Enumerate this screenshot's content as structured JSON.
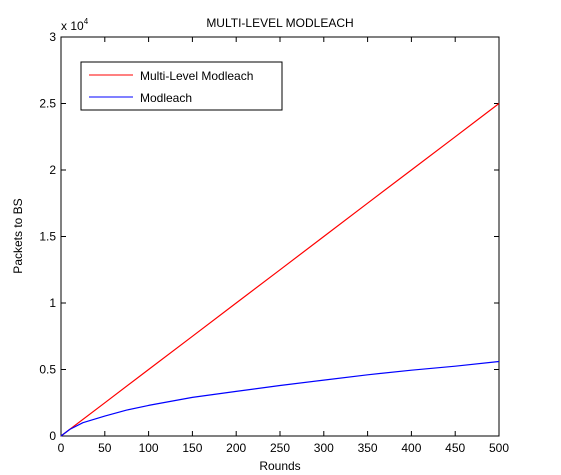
{
  "chart_data": {
    "type": "line",
    "title": "MULTI-LEVEL MODLEACH",
    "xlabel": "Rounds",
    "ylabel": "Packets to BS",
    "exponent_label": {
      "base": "x 10",
      "power": "4"
    },
    "xlim": [
      0,
      500
    ],
    "ylim": [
      0,
      30000
    ],
    "xticks": [
      0,
      50,
      100,
      150,
      200,
      250,
      300,
      350,
      400,
      450,
      500
    ],
    "yticks": [
      0,
      5000,
      10000,
      15000,
      20000,
      25000,
      30000
    ],
    "ytick_labels": [
      "0",
      "0.5",
      "1",
      "1.5",
      "2",
      "2.5",
      "3"
    ],
    "grid": false,
    "legend_position": "top-left",
    "series": [
      {
        "name": "Multi-Level Modleach",
        "color": "#ff0000",
        "x": [
          0,
          50,
          100,
          150,
          200,
          250,
          300,
          350,
          400,
          450,
          500
        ],
        "y": [
          0,
          2500,
          5000,
          7500,
          10000,
          12500,
          15000,
          17500,
          20000,
          22500,
          25000
        ]
      },
      {
        "name": "Modleach",
        "color": "#0000ff",
        "x": [
          0,
          10,
          25,
          50,
          75,
          100,
          150,
          200,
          250,
          300,
          350,
          400,
          450,
          500
        ],
        "y": [
          0,
          500,
          1000,
          1500,
          1950,
          2300,
          2900,
          3350,
          3800,
          4200,
          4600,
          4950,
          5250,
          5600
        ]
      }
    ]
  }
}
